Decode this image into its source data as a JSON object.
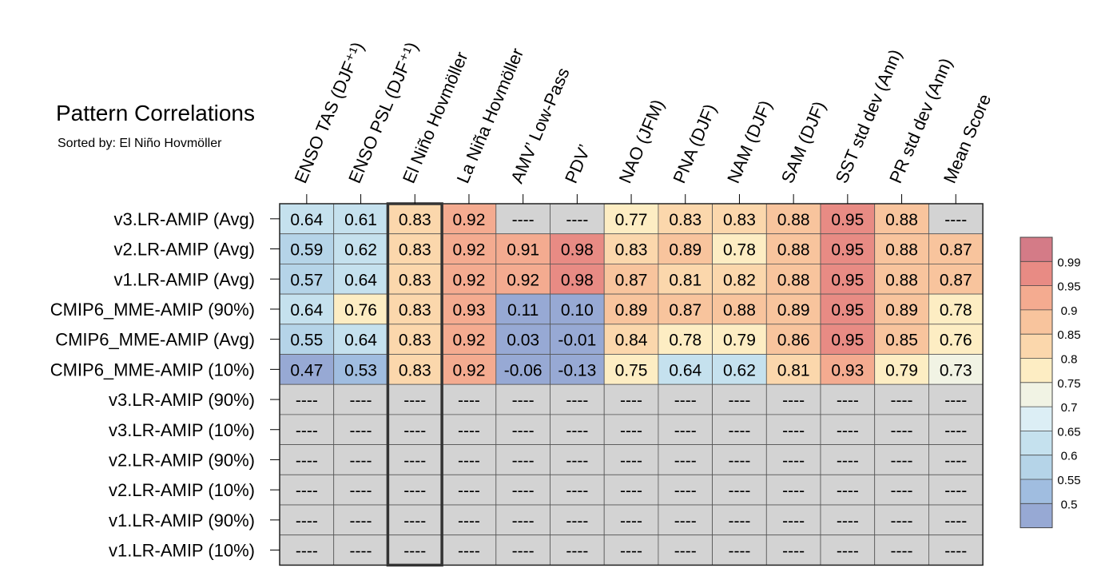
{
  "chart_data": {
    "type": "heatmap",
    "title": "Pattern Correlations",
    "subtitle": "Sorted by: El Niño Hovmöller",
    "columns": [
      "ENSO TAS (DJF⁺¹)",
      "ENSO PSL (DJF⁺¹)",
      "El Niño Hovmöller",
      "La Niña Hovmöller",
      "AMV’ Low-Pass",
      "PDV’",
      "NAO (JFM)",
      "PNA (DJF)",
      "NAM (DJF)",
      "SAM (DJF)",
      "SST std dev (Ann)",
      "PR std dev (Ann)",
      "Mean Score"
    ],
    "rows": [
      "v3.LR-AMIP (Avg)",
      "v2.LR-AMIP (Avg)",
      "v1.LR-AMIP (Avg)",
      "CMIP6_MME-AMIP (90%)",
      "CMIP6_MME-AMIP (Avg)",
      "CMIP6_MME-AMIP (10%)",
      "v3.LR-AMIP (90%)",
      "v3.LR-AMIP (10%)",
      "v2.LR-AMIP (90%)",
      "v2.LR-AMIP (10%)",
      "v1.LR-AMIP (90%)",
      "v1.LR-AMIP (10%)"
    ],
    "values": [
      [
        "0.64",
        "0.61",
        "0.83",
        "0.92",
        "----",
        "----",
        "0.77",
        "0.83",
        "0.83",
        "0.88",
        "0.95",
        "0.88",
        "----"
      ],
      [
        "0.59",
        "0.62",
        "0.83",
        "0.92",
        "0.91",
        "0.98",
        "0.83",
        "0.89",
        "0.78",
        "0.88",
        "0.95",
        "0.88",
        "0.87"
      ],
      [
        "0.57",
        "0.64",
        "0.83",
        "0.92",
        "0.92",
        "0.98",
        "0.87",
        "0.81",
        "0.82",
        "0.88",
        "0.95",
        "0.88",
        "0.87"
      ],
      [
        "0.64",
        "0.76",
        "0.83",
        "0.93",
        "0.11",
        "0.10",
        "0.89",
        "0.87",
        "0.88",
        "0.89",
        "0.95",
        "0.89",
        "0.78"
      ],
      [
        "0.55",
        "0.64",
        "0.83",
        "0.92",
        "0.03",
        "-0.01",
        "0.84",
        "0.78",
        "0.79",
        "0.86",
        "0.95",
        "0.85",
        "0.76"
      ],
      [
        "0.47",
        "0.53",
        "0.83",
        "0.92",
        "-0.06",
        "-0.13",
        "0.75",
        "0.64",
        "0.62",
        "0.81",
        "0.93",
        "0.79",
        "0.73"
      ],
      [
        "----",
        "----",
        "----",
        "----",
        "----",
        "----",
        "----",
        "----",
        "----",
        "----",
        "----",
        "----",
        "----"
      ],
      [
        "----",
        "----",
        "----",
        "----",
        "----",
        "----",
        "----",
        "----",
        "----",
        "----",
        "----",
        "----",
        "----"
      ],
      [
        "----",
        "----",
        "----",
        "----",
        "----",
        "----",
        "----",
        "----",
        "----",
        "----",
        "----",
        "----",
        "----"
      ],
      [
        "----",
        "----",
        "----",
        "----",
        "----",
        "----",
        "----",
        "----",
        "----",
        "----",
        "----",
        "----",
        "----"
      ],
      [
        "----",
        "----",
        "----",
        "----",
        "----",
        "----",
        "----",
        "----",
        "----",
        "----",
        "----",
        "----",
        "----"
      ],
      [
        "----",
        "----",
        "----",
        "----",
        "----",
        "----",
        "----",
        "----",
        "----",
        "----",
        "----",
        "----",
        "----"
      ]
    ],
    "highlighted_column": "El Niño Hovmöller",
    "colorbar": {
      "labels": [
        "0.99",
        "0.95",
        "0.9",
        "0.85",
        "0.8",
        "0.75",
        "0.7",
        "0.65",
        "0.6",
        "0.55",
        "0.5"
      ],
      "colors": [
        "#d47b87",
        "#e88b84",
        "#f4ab90",
        "#f8c49d",
        "#fbd7ac",
        "#fdedc3",
        "#f1f3e4",
        "#dceef5",
        "#c5e1ee",
        "#b5d4e8",
        "#a0bde0",
        "#97a9d4"
      ],
      "missing_color": "#d3d3d3"
    }
  }
}
